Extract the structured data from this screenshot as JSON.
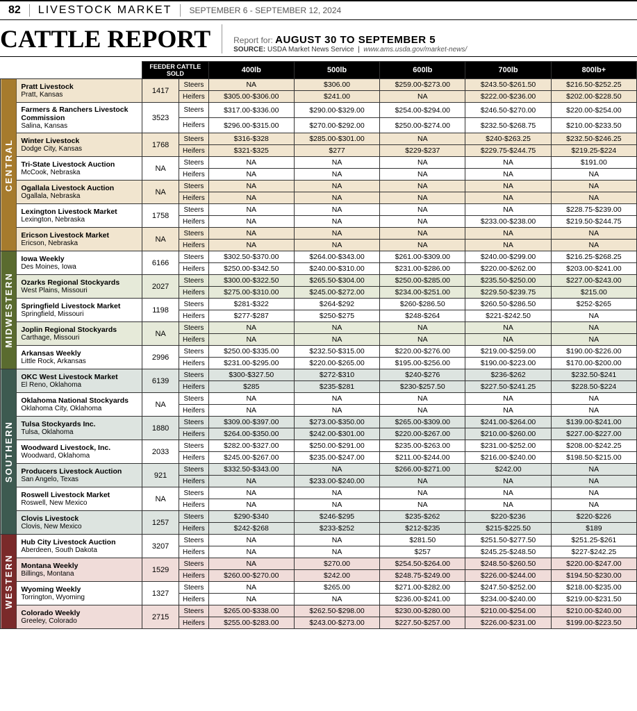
{
  "page_number": "82",
  "section": "LIVESTOCK MARKET",
  "issue_dates": "SEPTEMBER 6 - SEPTEMBER 12, 2024",
  "title": "CATTLE REPORT",
  "report_for_label": "Report for:",
  "report_for_range": "AUGUST 30 TO SEPTEMBER 5",
  "source_label": "SOURCE:",
  "source_name": "USDA Market News Service",
  "source_url": "www.ams.usda.gov/market-news/",
  "columns": [
    "FEEDER CATTLE SOLD",
    "400lb",
    "500lb",
    "600lb",
    "700lb",
    "800lb+"
  ],
  "row_types": [
    "Steers",
    "Heifers"
  ],
  "regions": [
    {
      "name": "CENTRAL",
      "markets": [
        {
          "name": "Pratt Livestock",
          "loc": "Pratt, Kansas",
          "sold": "1417",
          "shade": true,
          "steers": [
            "NA",
            "$306.00",
            "$259.00-$273.00",
            "$243.50-$261.50",
            "$216.50-$252.25"
          ],
          "heifers": [
            "$305.00-$306.00",
            "$241.00",
            "NA",
            "$222.00-$236.00",
            "$202.00-$228.50"
          ]
        },
        {
          "name": "Farmers & Ranchers Livestock Commission",
          "loc": "Salina, Kansas",
          "sold": "3523",
          "shade": false,
          "steers": [
            "$317.00-$336.00",
            "$290.00-$329.00",
            "$254.00-$294.00",
            "$246.50-$270.00",
            "$220.00-$254.00"
          ],
          "heifers": [
            "$296.00-$315.00",
            "$270.00-$292.00",
            "$250.00-$274.00",
            "$232.50-$268.75",
            "$210.00-$233.50"
          ]
        },
        {
          "name": "Winter Livestock",
          "loc": "Dodge City, Kansas",
          "sold": "1768",
          "shade": true,
          "steers": [
            "$316-$328",
            "$285.00-$301.00",
            "NA",
            "$240-$263.25",
            "$232.50-$246.25"
          ],
          "heifers": [
            "$321-$325",
            "$277",
            "$229-$237",
            "$229.75-$244.75",
            "$219.25-$224"
          ]
        },
        {
          "name": "Tri-State Livestock Auction",
          "loc": "McCook, Nebraska",
          "sold": "NA",
          "shade": false,
          "steers": [
            "NA",
            "NA",
            "NA",
            "NA",
            "$191.00"
          ],
          "heifers": [
            "NA",
            "NA",
            "NA",
            "NA",
            "NA"
          ]
        },
        {
          "name": "Ogallala Livestock Auction",
          "loc": "Ogallala, Nebraska",
          "sold": "NA",
          "shade": true,
          "steers": [
            "NA",
            "NA",
            "NA",
            "NA",
            "NA"
          ],
          "heifers": [
            "NA",
            "NA",
            "NA",
            "NA",
            "NA"
          ]
        },
        {
          "name": "Lexington Livestock Market",
          "loc": "Lexington, Nebraska",
          "sold": "1758",
          "shade": false,
          "steers": [
            "NA",
            "NA",
            "NA",
            "NA",
            "$228.75-$239.00"
          ],
          "heifers": [
            "NA",
            "NA",
            "NA",
            "$233.00-$238.00",
            "$219.50-$244.75"
          ]
        },
        {
          "name": "Ericson Livestock Market",
          "loc": "Ericson, Nebraska",
          "sold": "NA",
          "shade": true,
          "steers": [
            "NA",
            "NA",
            "NA",
            "NA",
            "NA"
          ],
          "heifers": [
            "NA",
            "NA",
            "NA",
            "NA",
            "NA"
          ]
        }
      ]
    },
    {
      "name": "MIDWESTERN",
      "markets": [
        {
          "name": "Iowa Weekly",
          "loc": "Des Moines, Iowa",
          "sold": "6166",
          "shade": false,
          "steers": [
            "$302.50-$370.00",
            "$264.00-$343.00",
            "$261.00-$309.00",
            "$240.00-$299.00",
            "$216.25-$268.25"
          ],
          "heifers": [
            "$250.00-$342.50",
            "$240.00-$310.00",
            "$231.00-$286.00",
            "$220.00-$262.00",
            "$203.00-$241.00"
          ]
        },
        {
          "name": "Ozarks Regional Stockyards",
          "loc": "West Plains, Missouri",
          "sold": "2027",
          "shade": true,
          "steers": [
            "$300.00-$322.50",
            "$265.50-$304.00",
            "$250.00-$285.00",
            "$235.50-$250.00",
            "$227.00-$243.00"
          ],
          "heifers": [
            "$275.00-$310.00",
            "$245.00-$272.00",
            "$234.00-$251.00",
            "$229.50-$239.75",
            "$215.00"
          ]
        },
        {
          "name": "Springfield Livestock Market",
          "loc": "Springfield, Missouri",
          "sold": "1198",
          "shade": false,
          "steers": [
            "$281-$322",
            "$264-$292",
            "$260-$286.50",
            "$260.50-$286.50",
            "$252-$265"
          ],
          "heifers": [
            "$277-$287",
            "$250-$275",
            "$248-$264",
            "$221-$242.50",
            "NA"
          ]
        },
        {
          "name": "Joplin Regional Stockyards",
          "loc": "Carthage, Missouri",
          "sold": "NA",
          "shade": true,
          "steers": [
            "NA",
            "NA",
            "NA",
            "NA",
            "NA"
          ],
          "heifers": [
            "NA",
            "NA",
            "NA",
            "NA",
            "NA"
          ]
        },
        {
          "name": "Arkansas Weekly",
          "loc": "Little Rock, Arkansas",
          "sold": "2996",
          "shade": false,
          "steers": [
            "$250.00-$335.00",
            "$232.50-$315.00",
            "$220.00-$276.00",
            "$219.00-$259.00",
            "$190.00-$226.00"
          ],
          "heifers": [
            "$231.00-$295.00",
            "$220.00-$265.00",
            "$195.00-$256.00",
            "$190.00-$223.00",
            "$170.00-$200.00"
          ]
        }
      ]
    },
    {
      "name": "SOUTHERN",
      "markets": [
        {
          "name": "OKC West Livestock Market",
          "loc": "El Reno, Oklahoma",
          "sold": "6139",
          "shade": true,
          "steers": [
            "$300-$327.50",
            "$272-$310",
            "$240-$276",
            "$236-$262",
            "$232.50-$241"
          ],
          "heifers": [
            "$285",
            "$235-$281",
            "$230-$257.50",
            "$227.50-$241.25",
            "$228.50-$224"
          ]
        },
        {
          "name": "Oklahoma National Stockyards",
          "loc": "Oklahoma City, Oklahoma",
          "sold": "NA",
          "shade": false,
          "steers": [
            "NA",
            "NA",
            "NA",
            "NA",
            "NA"
          ],
          "heifers": [
            "NA",
            "NA",
            "NA",
            "NA",
            "NA"
          ]
        },
        {
          "name": "Tulsa Stockyards Inc.",
          "loc": "Tulsa, Oklahoma",
          "sold": "1880",
          "shade": true,
          "steers": [
            "$309.00-$397.00",
            "$273.00-$350.00",
            "$265.00-$309.00",
            "$241.00-$264.00",
            "$139.00-$241.00"
          ],
          "heifers": [
            "$264.00-$350.00",
            "$242.00-$301.00",
            "$220.00-$267.00",
            "$210.00-$260.00",
            "$227.00-$227.00"
          ]
        },
        {
          "name": "Woodward Livestock, Inc.",
          "loc": "Woodward, Oklahoma",
          "sold": "2033",
          "shade": false,
          "steers": [
            "$282.00-$327.00",
            "$250.00-$291.00",
            "$235.00-$263.00",
            "$231.00-$252.00",
            "$208.00-$242.25"
          ],
          "heifers": [
            "$245.00-$267.00",
            "$235.00-$247.00",
            "$211.00-$244.00",
            "$216.00-$240.00",
            "$198.50-$215.00"
          ]
        },
        {
          "name": "Producers Livestock Auction",
          "loc": "San Angelo, Texas",
          "sold": "921",
          "shade": true,
          "steers": [
            "$332.50-$343.00",
            "NA",
            "$266.00-$271.00",
            "$242.00",
            "NA"
          ],
          "heifers": [
            "NA",
            "$233.00-$240.00",
            "NA",
            "NA",
            "NA"
          ]
        },
        {
          "name": "Roswell Livestock Market",
          "loc": "Roswell, New Mexico",
          "sold": "NA",
          "shade": false,
          "steers": [
            "NA",
            "NA",
            "NA",
            "NA",
            "NA"
          ],
          "heifers": [
            "NA",
            "NA",
            "NA",
            "NA",
            "NA"
          ]
        },
        {
          "name": "Clovis Livestock",
          "loc": "Clovis, New Mexico",
          "sold": "1257",
          "shade": true,
          "steers": [
            "$290-$340",
            "$246-$295",
            "$235-$262",
            "$220-$236",
            "$220-$226"
          ],
          "heifers": [
            "$242-$268",
            "$233-$252",
            "$212-$235",
            "$215-$225.50",
            "$189"
          ]
        }
      ]
    },
    {
      "name": "WESTERN",
      "markets": [
        {
          "name": "Hub City Livestock Auction",
          "loc": "Aberdeen, South Dakota",
          "sold": "3207",
          "shade": false,
          "steers": [
            "NA",
            "NA",
            "$281.50",
            "$251.50-$277.50",
            "$251.25-$261"
          ],
          "heifers": [
            "NA",
            "NA",
            "$257",
            "$245.25-$248.50",
            "$227-$242.25"
          ]
        },
        {
          "name": "Montana Weekly",
          "loc": "Billings, Montana",
          "sold": "1529",
          "shade": true,
          "steers": [
            "NA",
            "$270.00",
            "$254.50-$264.00",
            "$248.50-$260.50",
            "$220.00-$247.00"
          ],
          "heifers": [
            "$260.00-$270.00",
            "$242.00",
            "$248.75-$249.00",
            "$226.00-$244.00",
            "$194.50-$230.00"
          ]
        },
        {
          "name": "Wyoming Weekly",
          "loc": "Torrington, Wyoming",
          "sold": "1327",
          "shade": false,
          "steers": [
            "NA",
            "$265.00",
            "$271.00-$282.00",
            "$247.50-$252.00",
            "$218.00-$235.00"
          ],
          "heifers": [
            "NA",
            "NA",
            "$236.00-$241.00",
            "$234.00-$240.00",
            "$219.00-$231.50"
          ]
        },
        {
          "name": "Colorado Weekly",
          "loc": "Greeley, Colorado",
          "sold": "2715",
          "shade": true,
          "steers": [
            "$265.00-$338.00",
            "$262.50-$298.00",
            "$230.00-$280.00",
            "$210.00-$254.00",
            "$210.00-$240.00"
          ],
          "heifers": [
            "$255.00-$283.00",
            "$243.00-$273.00",
            "$227.50-$257.00",
            "$226.00-$231.00",
            "$199.00-$223.50"
          ]
        }
      ]
    }
  ]
}
